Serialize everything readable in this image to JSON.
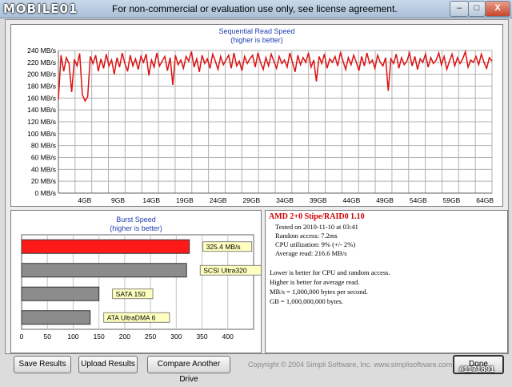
{
  "window": {
    "logo": "MOBILE01",
    "title": "For non-commercial or evaluation use only, see license agreement.",
    "minimize": "–",
    "maximize": "□",
    "close": "X"
  },
  "colors": {
    "read_line": "#dd1111",
    "burst_highlight": "#ff1a1a",
    "burst_other": "#8c8c8c",
    "label_bg": "#ffffc0",
    "title_blue": "#1f3fb0",
    "drive_red": "#d00000"
  },
  "chart_data": [
    {
      "type": "line",
      "title": "Sequential Read Speed",
      "subtitle": "(higher is better)",
      "xlabel": "",
      "ylabel": "",
      "ylim": [
        0,
        240
      ],
      "ytick_labels": [
        "0 MB/s",
        "20 MB/s",
        "40 MB/s",
        "60 MB/s",
        "80 MB/s",
        "100 MB/s",
        "120 MB/s",
        "140 MB/s",
        "160 MB/s",
        "180 MB/s",
        "200 MB/s",
        "220 MB/s",
        "240 MB/s"
      ],
      "xtick_labels": [
        "4GB",
        "9GB",
        "14GB",
        "19GB",
        "24GB",
        "29GB",
        "34GB",
        "39GB",
        "44GB",
        "49GB",
        "54GB",
        "59GB",
        "64GB"
      ],
      "grid": true,
      "series": [
        {
          "values": [
            158,
            232,
            205,
            228,
            218,
            170,
            225,
            214,
            235,
            166,
            155,
            162,
            230,
            218,
            232,
            205,
            226,
            210,
            234,
            214,
            224,
            200,
            228,
            212,
            236,
            218,
            205,
            232,
            214,
            226,
            208,
            230,
            220,
            234,
            198,
            224,
            212,
            236,
            214,
            222,
            230,
            206,
            228,
            182,
            232,
            216,
            224,
            210,
            230,
            222,
            238,
            212,
            226,
            204,
            232,
            218,
            226,
            210,
            234,
            222,
            208,
            230,
            216,
            224,
            232,
            210,
            236,
            214,
            222,
            206,
            230,
            218,
            226,
            232,
            212,
            236,
            220,
            208,
            228,
            214,
            234,
            222,
            210,
            230,
            218,
            224,
            212,
            236,
            220,
            204,
            232,
            216,
            228,
            220,
            236,
            212,
            224,
            188,
            230,
            218,
            234,
            210,
            226,
            220,
            230,
            214,
            236,
            222,
            208,
            228,
            216,
            232,
            220,
            206,
            230,
            214,
            236,
            218,
            224,
            210,
            232,
            220,
            214,
            228,
            172,
            226,
            218,
            234,
            210,
            228,
            216,
            222,
            236,
            214,
            230,
            208,
            226,
            220,
            234,
            212,
            228,
            218,
            224,
            236,
            216,
            230,
            208,
            222,
            234,
            214,
            228,
            218,
            226,
            238,
            212,
            224,
            220,
            230,
            216,
            234,
            220,
            210,
            228,
            222
          ]
        }
      ]
    },
    {
      "type": "bar",
      "title": "Burst Speed",
      "subtitle": "(higher is better)",
      "xlim": [
        0,
        450
      ],
      "xtick_labels": [
        "0",
        "50",
        "100",
        "150",
        "200",
        "250",
        "300",
        "350",
        "400"
      ],
      "categories": [
        "325.4 MB/s",
        "SCSI Ultra320",
        "SATA 150",
        "ATA UltraDMA 6"
      ],
      "values": [
        325.4,
        320,
        150,
        133
      ],
      "highlight_index": 0
    }
  ],
  "info": {
    "drive": "AMD 2+0 Stipe/RAID0 1.10",
    "tested_on": "Tested on 2010-11-10 at 03:41",
    "random_access": "Random access: 7.2ms",
    "cpu": "CPU utilization: 9% (+/- 2%)",
    "average": "Average read: 216.6 MB/s",
    "note1": "Lower is better for CPU and random access.",
    "note2": "Higher is better for average read.",
    "note3": "MB/s = 1,000,000 bytes per second.",
    "note4": "GB = 1,000,000,000 bytes."
  },
  "buttons": {
    "save": "Save Results",
    "upload": "Upload Results",
    "compare": "Compare Another Drive",
    "done": "Done"
  },
  "copyright": "Copyright © 2004 Simpli Software, Inc. www.simplisoftware.com",
  "watermark": "#1171891"
}
